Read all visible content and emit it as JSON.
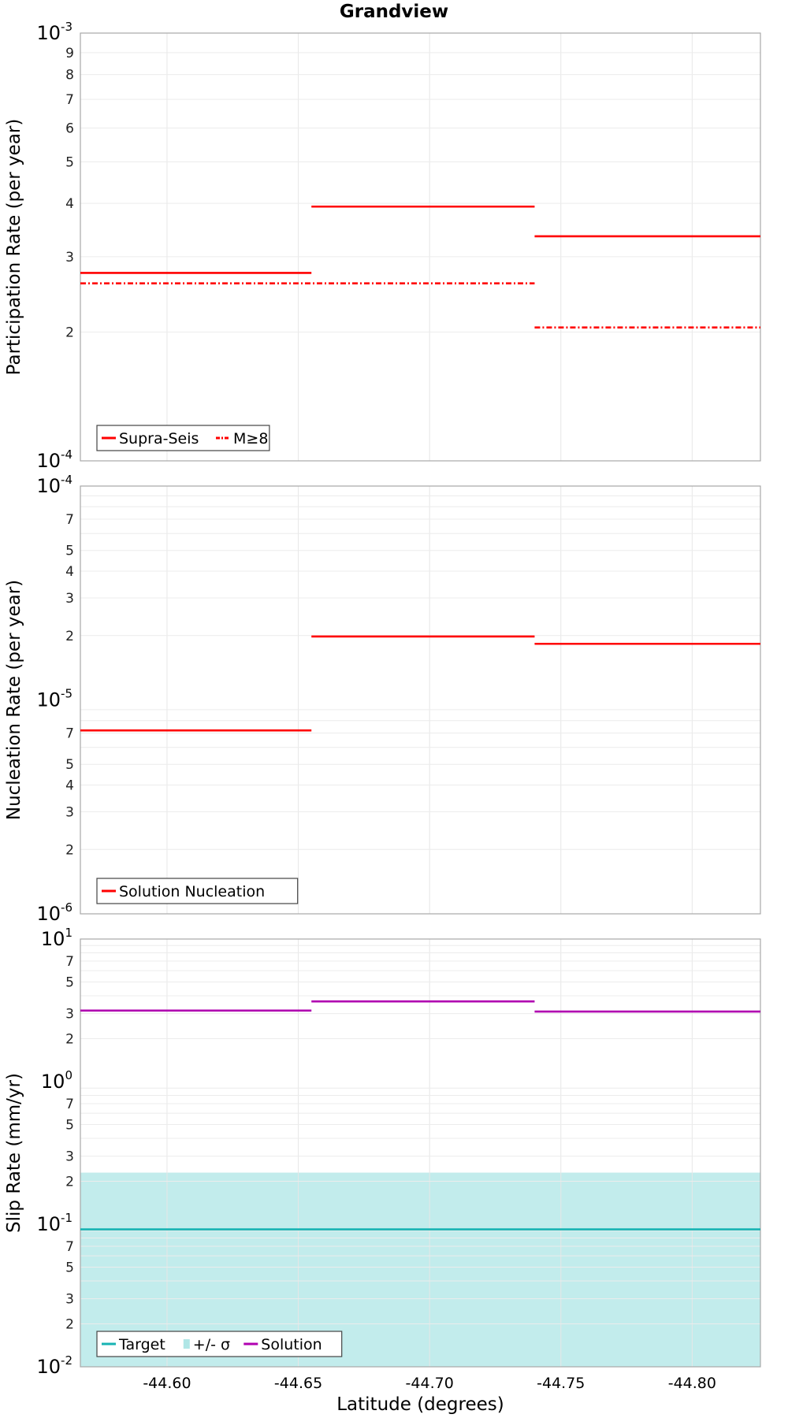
{
  "title": "Grandview",
  "chart_data": [
    {
      "type": "line",
      "step": true,
      "ylabel": "Participation Rate (per year)",
      "yscale": "log",
      "ylim": [
        0.0001,
        0.001
      ],
      "xlim": [
        -44.567,
        -44.826
      ],
      "x_reversed": true,
      "legend_position": "bottom-left",
      "grid": true,
      "series": [
        {
          "name": "Supra-Seis",
          "color": "#ff0000",
          "dash": "solid",
          "segments": [
            {
              "x0": -44.567,
              "x1": -44.655,
              "y": 0.000275
            },
            {
              "x0": -44.655,
              "x1": -44.74,
              "y": 0.000393
            },
            {
              "x0": -44.74,
              "x1": -44.826,
              "y": 0.000335
            }
          ]
        },
        {
          "name": "M≥8",
          "color": "#ff0000",
          "dash": "dashdot",
          "segments": [
            {
              "x0": -44.567,
              "x1": -44.74,
              "y": 0.00026
            },
            {
              "x0": -44.74,
              "x1": -44.826,
              "y": 0.000205
            }
          ]
        }
      ]
    },
    {
      "type": "line",
      "step": true,
      "ylabel": "Nucleation Rate (per year)",
      "yscale": "log",
      "ylim": [
        1e-06,
        0.0001
      ],
      "xlim": [
        -44.567,
        -44.826
      ],
      "x_reversed": true,
      "legend_position": "bottom-left",
      "grid": true,
      "series": [
        {
          "name": "Solution Nucleation",
          "color": "#ff0000",
          "dash": "solid",
          "segments": [
            {
              "x0": -44.567,
              "x1": -44.655,
              "y": 7.2e-06
            },
            {
              "x0": -44.655,
              "x1": -44.74,
              "y": 1.98e-05
            },
            {
              "x0": -44.74,
              "x1": -44.826,
              "y": 1.83e-05
            }
          ]
        }
      ]
    },
    {
      "type": "line",
      "step": true,
      "ylabel": "Slip Rate (mm/yr)",
      "xlabel": "Latitude (degrees)",
      "yscale": "log",
      "ylim": [
        0.01,
        10
      ],
      "xlim": [
        -44.567,
        -44.826
      ],
      "x_reversed": true,
      "xticks": [
        -44.6,
        -44.65,
        -44.7,
        -44.75,
        -44.8
      ],
      "xtick_labels": [
        "-44.60",
        "-44.65",
        "-44.70",
        "-44.75",
        "-44.80"
      ],
      "legend_position": "bottom-left",
      "grid": true,
      "band": {
        "name": "+/- σ",
        "color": "#8fdcdc",
        "lower": 0.01,
        "upper": 0.23
      },
      "series": [
        {
          "name": "Target",
          "color": "#17b3b3",
          "dash": "solid",
          "segments": [
            {
              "x0": -44.567,
              "x1": -44.826,
              "y": 0.092
            }
          ]
        },
        {
          "name": "Solution",
          "color": "#b000b0",
          "dash": "solid",
          "segments": [
            {
              "x0": -44.567,
              "x1": -44.655,
              "y": 3.15
            },
            {
              "x0": -44.655,
              "x1": -44.74,
              "y": 3.65
            },
            {
              "x0": -44.74,
              "x1": -44.826,
              "y": 3.1
            }
          ]
        }
      ],
      "legend_order": [
        "Target",
        "+/- σ",
        "Solution"
      ]
    }
  ]
}
